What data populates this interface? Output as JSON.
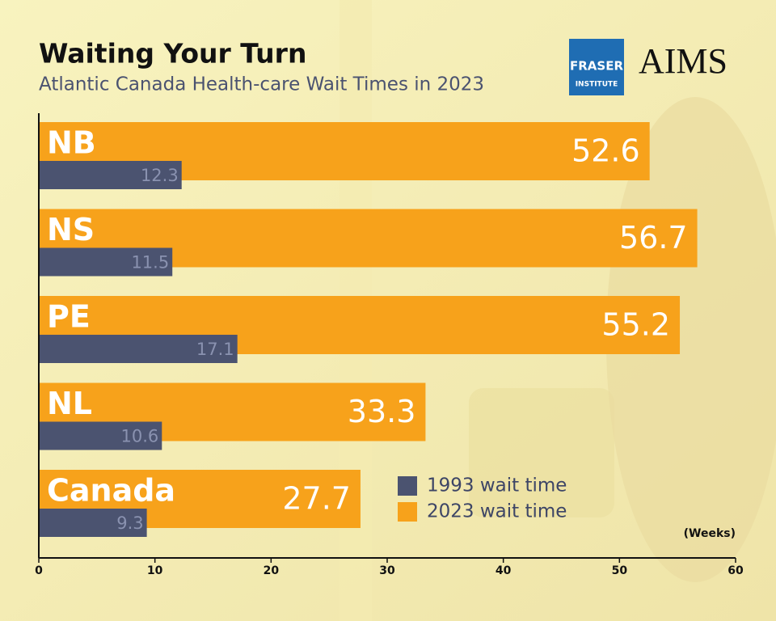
{
  "logos": {
    "fraser": [
      "FRASER",
      "INSTITUTE"
    ],
    "aims": "AIMS"
  },
  "chart_data": {
    "type": "hbar",
    "title": "Waiting Your Turn",
    "subtitle": "Atlantic Canada Health-care Wait Times in 2023",
    "x_label": "(Weeks)",
    "categories": [
      "NB",
      "NS",
      "PE",
      "NL",
      "Canada"
    ],
    "series": [
      {
        "name": "1993 wait time",
        "color": "#4b5370",
        "values": [
          12.3,
          11.5,
          17.1,
          10.6,
          9.3
        ]
      },
      {
        "name": "2023 wait time",
        "color": "#f7a21b",
        "values": [
          52.6,
          56.7,
          55.2,
          33.3,
          27.7
        ]
      }
    ],
    "xlim": [
      0,
      60
    ],
    "xticks": [
      0,
      10,
      20,
      30,
      40,
      50,
      60
    ]
  }
}
